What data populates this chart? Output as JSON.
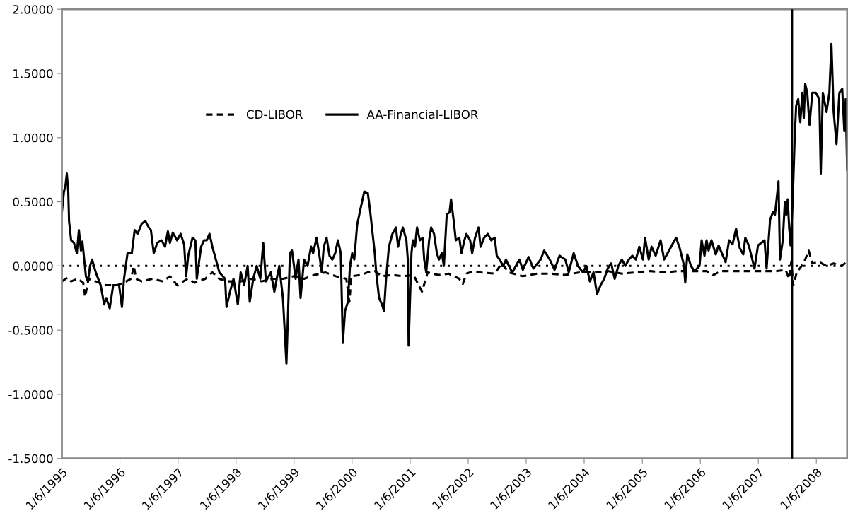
{
  "chart_data": {
    "type": "line",
    "xlim": [
      "1995-01-06",
      "2008-07-18"
    ],
    "xticks": [
      {
        "value": "1995-01-06",
        "label": "1/6/1995"
      },
      {
        "value": "1996-01-06",
        "label": "1/6/1996"
      },
      {
        "value": "1997-01-06",
        "label": "1/6/1997"
      },
      {
        "value": "1998-01-06",
        "label": "1/6/1998"
      },
      {
        "value": "1999-01-06",
        "label": "1/6/1999"
      },
      {
        "value": "2000-01-06",
        "label": "1/6/2000"
      },
      {
        "value": "2001-01-06",
        "label": "1/6/2001"
      },
      {
        "value": "2002-01-06",
        "label": "1/6/2002"
      },
      {
        "value": "2003-01-06",
        "label": "1/6/2003"
      },
      {
        "value": "2004-01-06",
        "label": "1/6/2004"
      },
      {
        "value": "2005-01-06",
        "label": "1/6/2005"
      },
      {
        "value": "2006-01-06",
        "label": "1/6/2006"
      },
      {
        "value": "2007-01-06",
        "label": "1/6/2007"
      },
      {
        "value": "2008-01-06",
        "label": "1/6/2008"
      }
    ],
    "ylim": [
      -1.5,
      2.0
    ],
    "yticks": [
      {
        "value": -1.5,
        "label": "-1.5000"
      },
      {
        "value": -1.0,
        "label": "-1.0000"
      },
      {
        "value": -0.5,
        "label": "-0.5000"
      },
      {
        "value": 0,
        "label": "0.0000"
      },
      {
        "value": 0.5,
        "label": "0.5000"
      },
      {
        "value": 1.0,
        "label": "1.0000"
      },
      {
        "value": 1.5,
        "label": "1.5000"
      },
      {
        "value": 2.0,
        "label": "2.0000"
      }
    ],
    "grid": false,
    "legend": "top left",
    "marker": "none",
    "ref_lines": [
      {
        "axis": "y",
        "value": 0,
        "label": null,
        "color": "#000000",
        "line_style": "dotted"
      },
      {
        "axis": "x",
        "value": "2007-08-06",
        "label": null,
        "color": "#000000",
        "line_style": "solid"
      }
    ],
    "series": [
      {
        "name": "CD-LIBOR",
        "color": "#000000",
        "line_style": "dashed",
        "x": [
          "1995-01-06",
          "1995-02-10",
          "1995-03-05",
          "1995-04-15",
          "1995-05-20",
          "1995-06-01",
          "1995-06-23",
          "1995-08-07",
          "1995-10-12",
          "1995-12-18",
          "1996-02-01",
          "1996-03-16",
          "1996-04-03",
          "1996-04-16",
          "1996-05-23",
          "1996-07-28",
          "1996-10-02",
          "1996-11-16",
          "1996-12-31",
          "1997-03-07",
          "1997-04-20",
          "1997-06-26",
          "1997-08-10",
          "1997-09-23",
          "1997-11-07",
          "1998-02-04",
          "1998-04-11",
          "1998-06-17",
          "1998-08-22",
          "1998-10-28",
          "1999-01-02",
          "1999-03-10",
          "1999-05-15",
          "1999-07-21",
          "1999-09-26",
          "1999-12-01",
          "1999-12-20",
          "2000-01-02",
          "2000-02-29",
          "2000-04-14",
          "2000-05-28",
          "2000-07-12",
          "2000-09-16",
          "2000-11-21",
          "2001-01-27",
          "2001-03-21",
          "2001-04-26",
          "2001-07-01",
          "2001-09-05",
          "2001-11-11",
          "2001-12-03",
          "2001-12-26",
          "2002-02-09",
          "2002-03-25",
          "2002-06-22",
          "2002-08-05",
          "2002-09-19",
          "2002-12-16",
          "2003-03-16",
          "2003-06-12",
          "2003-09-09",
          "2003-12-07",
          "2004-03-05",
          "2004-06-02",
          "2004-08-30",
          "2004-11-26",
          "2005-02-24",
          "2005-05-23",
          "2005-08-21",
          "2005-11-17",
          "2006-02-14",
          "2006-03-30",
          "2006-05-14",
          "2006-08-10",
          "2006-11-07",
          "2007-02-05",
          "2007-05-04",
          "2007-06-27",
          "2007-07-19",
          "2007-08-01",
          "2007-08-14",
          "2007-09-05",
          "2007-10-06",
          "2007-10-28",
          "2007-11-19",
          "2007-12-12",
          "2008-01-25",
          "2008-03-10",
          "2008-04-24",
          "2008-06-08",
          "2008-07-18"
        ],
        "values": [
          -0.12,
          -0.09,
          -0.12,
          -0.1,
          -0.13,
          -0.24,
          -0.1,
          -0.12,
          -0.15,
          -0.15,
          -0.13,
          -0.1,
          0.0,
          -0.1,
          -0.12,
          -0.1,
          -0.12,
          -0.08,
          -0.15,
          -0.1,
          -0.13,
          -0.1,
          -0.05,
          -0.1,
          -0.12,
          -0.12,
          -0.1,
          -0.12,
          -0.1,
          -0.1,
          -0.08,
          -0.1,
          -0.07,
          -0.05,
          -0.08,
          -0.1,
          -0.28,
          -0.08,
          -0.07,
          -0.05,
          -0.04,
          -0.08,
          -0.07,
          -0.08,
          -0.07,
          -0.2,
          -0.05,
          -0.07,
          -0.06,
          -0.1,
          -0.14,
          -0.06,
          -0.04,
          -0.05,
          -0.06,
          0.02,
          -0.05,
          -0.08,
          -0.06,
          -0.06,
          -0.07,
          -0.05,
          -0.05,
          -0.04,
          -0.06,
          -0.05,
          -0.04,
          -0.05,
          -0.04,
          -0.04,
          -0.04,
          -0.07,
          -0.04,
          -0.04,
          -0.04,
          -0.04,
          -0.04,
          -0.03,
          -0.1,
          0.03,
          -0.15,
          -0.05,
          0.0,
          0.05,
          0.12,
          0.02,
          0.03,
          0.0,
          0.02,
          0.0,
          0.03
        ]
      },
      {
        "name": "AA-Financial-LIBOR",
        "color": "#000000",
        "line_style": "solid",
        "x": [
          "1995-01-06",
          "1995-01-19",
          "1995-01-28",
          "1995-02-06",
          "1995-02-15",
          "1995-02-20",
          "1995-03-05",
          "1995-03-23",
          "1995-04-10",
          "1995-04-23",
          "1995-05-06",
          "1995-05-15",
          "1995-05-24",
          "1995-06-06",
          "1995-06-19",
          "1995-07-02",
          "1995-07-15",
          "1995-08-07",
          "1995-09-07",
          "1995-09-29",
          "1995-10-12",
          "1995-11-03",
          "1995-11-25",
          "1996-01-01",
          "1996-01-19",
          "1996-02-01",
          "1996-02-23",
          "1996-03-21",
          "1996-04-08",
          "1996-04-26",
          "1996-05-23",
          "1996-06-14",
          "1996-07-06",
          "1996-07-19",
          "1996-08-06",
          "1996-08-28",
          "1996-09-24",
          "1996-10-16",
          "1996-11-03",
          "1996-11-16",
          "1996-12-04",
          "1996-12-31",
          "1997-01-22",
          "1997-02-13",
          "1997-02-26",
          "1997-03-11",
          "1997-04-07",
          "1997-04-25",
          "1997-05-04",
          "1997-05-31",
          "1997-06-18",
          "1997-07-05",
          "1997-07-23",
          "1997-08-10",
          "1997-09-01",
          "1997-09-23",
          "1997-10-29",
          "1997-11-07",
          "1997-11-29",
          "1997-12-21",
          "1998-01-17",
          "1998-02-04",
          "1998-02-26",
          "1998-03-20",
          "1998-04-02",
          "1998-04-24",
          "1998-05-16",
          "1998-06-08",
          "1998-06-26",
          "1998-07-13",
          "1998-08-13",
          "1998-09-04",
          "1998-09-22",
          "1998-10-05",
          "1998-10-28",
          "1998-11-19",
          "1998-12-11",
          "1998-12-24",
          "1999-01-16",
          "1999-02-03",
          "1999-02-16",
          "1999-03-10",
          "1999-04-01",
          "1999-04-23",
          "1999-05-06",
          "1999-05-28",
          "1999-06-16",
          "1999-06-29",
          "1999-07-12",
          "1999-07-30",
          "1999-08-17",
          "1999-09-04",
          "1999-09-22",
          "1999-10-09",
          "1999-10-27",
          "1999-11-09",
          "1999-11-23",
          "1999-12-11",
          "1999-12-24",
          "2000-01-07",
          "2000-01-20",
          "2000-02-07",
          "2000-02-29",
          "2000-03-23",
          "2000-04-14",
          "2000-04-27",
          "2000-05-10",
          "2000-05-28",
          "2000-06-06",
          "2000-06-24",
          "2000-07-12",
          "2000-07-25",
          "2000-08-07",
          "2000-08-25",
          "2000-09-16",
          "2000-10-08",
          "2000-10-22",
          "2000-11-08",
          "2000-11-21",
          "2000-12-13",
          "2000-12-22",
          "2000-12-27",
          "2001-01-14",
          "2001-01-23",
          "2001-02-05",
          "2001-02-18",
          "2001-03-08",
          "2001-03-26",
          "2001-04-04",
          "2001-04-17",
          "2001-05-05",
          "2001-05-18",
          "2001-06-05",
          "2001-06-23",
          "2001-07-06",
          "2001-07-24",
          "2001-08-06",
          "2001-08-24",
          "2001-09-11",
          "2001-09-20",
          "2001-10-07",
          "2001-10-20",
          "2001-11-11",
          "2001-11-25",
          "2001-12-13",
          "2001-12-26",
          "2002-01-18",
          "2002-01-31",
          "2002-02-18",
          "2002-03-12",
          "2002-03-25",
          "2002-04-16",
          "2002-05-09",
          "2002-05-31",
          "2002-06-22",
          "2002-07-05",
          "2002-07-23",
          "2002-08-14",
          "2002-09-01",
          "2002-09-19",
          "2002-10-11",
          "2002-11-24",
          "2002-12-16",
          "2003-01-21",
          "2003-02-21",
          "2003-04-07",
          "2003-04-29",
          "2003-06-03",
          "2003-07-04",
          "2003-08-04",
          "2003-09-09",
          "2003-10-01",
          "2003-11-01",
          "2003-11-28",
          "2003-12-29",
          "2004-01-20",
          "2004-02-11",
          "2004-03-05",
          "2004-03-27",
          "2004-04-18",
          "2004-05-11",
          "2004-06-02",
          "2004-06-24",
          "2004-07-16",
          "2004-08-08",
          "2004-08-30",
          "2004-09-21",
          "2004-10-13",
          "2004-11-04",
          "2004-11-26",
          "2004-12-18",
          "2005-01-10",
          "2005-01-23",
          "2005-02-15",
          "2005-03-05",
          "2005-03-31",
          "2005-05-01",
          "2005-05-23",
          "2005-07-19",
          "2005-08-07",
          "2005-08-29",
          "2005-09-24",
          "2005-10-03",
          "2005-10-16",
          "2005-11-08",
          "2005-11-30",
          "2006-01-01",
          "2006-01-14",
          "2006-02-01",
          "2006-02-14",
          "2006-02-27",
          "2006-03-17",
          "2006-04-13",
          "2006-05-01",
          "2006-06-14",
          "2006-07-06",
          "2006-07-28",
          "2006-08-19",
          "2006-09-11",
          "2006-10-03",
          "2006-10-16",
          "2006-11-07",
          "2006-12-13",
          "2007-01-04",
          "2007-02-14",
          "2007-02-27",
          "2007-03-21",
          "2007-04-08",
          "2007-04-21",
          "2007-05-13",
          "2007-05-22",
          "2007-06-09",
          "2007-06-22",
          "2007-07-01",
          "2007-07-10",
          "2007-07-19",
          "2007-07-28",
          "2007-08-10",
          "2007-08-23",
          "2007-09-01",
          "2007-09-14",
          "2007-09-27",
          "2007-10-10",
          "2007-10-19",
          "2007-10-28",
          "2007-11-10",
          "2007-11-24",
          "2007-12-12",
          "2008-01-03",
          "2008-01-25",
          "2008-02-03",
          "2008-02-16",
          "2008-03-10",
          "2008-03-28",
          "2008-04-10",
          "2008-04-24",
          "2008-05-12",
          "2008-05-30",
          "2008-06-17",
          "2008-06-30",
          "2008-07-09",
          "2008-07-18"
        ],
        "values": [
          0.42,
          0.58,
          0.62,
          0.72,
          0.58,
          0.35,
          0.2,
          0.18,
          0.1,
          0.28,
          0.12,
          0.19,
          0.08,
          -0.08,
          -0.12,
          0.0,
          0.05,
          -0.05,
          -0.15,
          -0.3,
          -0.25,
          -0.33,
          -0.15,
          -0.15,
          -0.32,
          -0.1,
          0.1,
          0.1,
          0.28,
          0.25,
          0.33,
          0.35,
          0.3,
          0.28,
          0.1,
          0.18,
          0.2,
          0.15,
          0.27,
          0.18,
          0.26,
          0.2,
          0.25,
          0.17,
          -0.08,
          0.08,
          0.22,
          0.2,
          -0.1,
          0.15,
          0.2,
          0.2,
          0.25,
          0.15,
          0.05,
          -0.05,
          -0.1,
          -0.32,
          -0.2,
          -0.1,
          -0.3,
          -0.05,
          -0.15,
          0.0,
          -0.28,
          -0.1,
          0.0,
          -0.1,
          0.18,
          -0.12,
          -0.05,
          -0.2,
          -0.08,
          0.0,
          -0.25,
          -0.76,
          0.1,
          0.12,
          -0.1,
          0.05,
          -0.25,
          0.05,
          0.0,
          0.15,
          0.1,
          0.22,
          0.07,
          -0.05,
          0.15,
          0.22,
          0.08,
          0.05,
          0.1,
          0.2,
          0.1,
          -0.6,
          -0.35,
          -0.28,
          0.0,
          0.1,
          0.05,
          0.32,
          0.45,
          0.58,
          0.57,
          0.45,
          0.3,
          0.1,
          -0.05,
          -0.25,
          -0.3,
          -0.35,
          -0.1,
          0.15,
          0.25,
          0.3,
          0.15,
          0.25,
          0.3,
          0.2,
          0.05,
          -0.62,
          0.1,
          0.2,
          0.15,
          0.3,
          0.2,
          0.22,
          0.05,
          -0.05,
          0.2,
          0.3,
          0.25,
          0.1,
          0.05,
          0.1,
          0.0,
          0.4,
          0.42,
          0.52,
          0.35,
          0.2,
          0.22,
          0.1,
          0.2,
          0.25,
          0.2,
          0.1,
          0.22,
          0.3,
          0.15,
          0.22,
          0.25,
          0.2,
          0.22,
          0.08,
          0.05,
          0.0,
          0.05,
          0.0,
          -0.05,
          0.05,
          -0.03,
          0.07,
          -0.02,
          0.05,
          0.12,
          0.05,
          -0.03,
          0.08,
          0.05,
          -0.05,
          0.1,
          0.0,
          -0.05,
          0.0,
          -0.12,
          -0.05,
          -0.22,
          -0.15,
          -0.1,
          -0.02,
          0.02,
          -0.1,
          0.0,
          0.05,
          0.0,
          0.05,
          0.08,
          0.05,
          0.15,
          0.05,
          0.22,
          0.05,
          0.15,
          0.08,
          0.2,
          0.05,
          0.18,
          0.22,
          0.14,
          0.01,
          -0.13,
          0.09,
          0.0,
          -0.04,
          0.0,
          0.2,
          0.08,
          0.2,
          0.12,
          0.2,
          0.09,
          0.16,
          0.03,
          0.2,
          0.17,
          0.29,
          0.14,
          0.09,
          0.22,
          0.16,
          -0.02,
          0.16,
          0.2,
          -0.02,
          0.36,
          0.42,
          0.4,
          0.66,
          0.05,
          0.2,
          0.5,
          0.4,
          0.52,
          0.3,
          0.16,
          0.5,
          1.0,
          1.25,
          1.3,
          1.12,
          1.35,
          1.15,
          1.42,
          1.35,
          1.1,
          1.35,
          1.35,
          1.3,
          0.72,
          1.35,
          1.2,
          1.35,
          1.73,
          1.2,
          0.95,
          1.35,
          1.38,
          1.05,
          1.3,
          0.75
        ]
      }
    ]
  }
}
